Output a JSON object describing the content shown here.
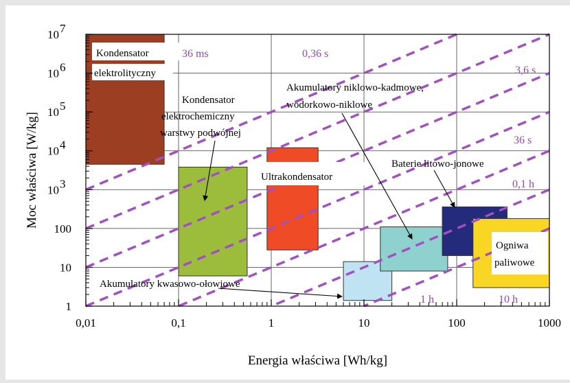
{
  "chart_data": {
    "type": "scatter",
    "subtype": "ragone-plot",
    "x_scale": "log",
    "y_scale": "log",
    "xlim": [
      0.01,
      1000
    ],
    "ylim": [
      1,
      10000000
    ],
    "xlabel": "Energia właściwa [Wh/kg]",
    "ylabel": "Moc właściwa [W/kg]",
    "x_ticks": [
      {
        "value": 0.01,
        "label": "0,01"
      },
      {
        "value": 0.1,
        "label": "0,1"
      },
      {
        "value": 1,
        "label": "1"
      },
      {
        "value": 10,
        "label": "10"
      },
      {
        "value": 100,
        "label": "100"
      },
      {
        "value": 1000,
        "label": "1000"
      }
    ],
    "y_ticks": [
      {
        "value": 1,
        "label": "1",
        "exp": ""
      },
      {
        "value": 10,
        "label": "10",
        "exp": ""
      },
      {
        "value": 100,
        "label": "100",
        "exp": ""
      },
      {
        "value": 1000,
        "label": "10",
        "exp": "3"
      },
      {
        "value": 10000,
        "label": "10",
        "exp": "4"
      },
      {
        "value": 100000,
        "label": "10",
        "exp": "5"
      },
      {
        "value": 1000000,
        "label": "10",
        "exp": "6"
      },
      {
        "value": 10000000,
        "label": "10",
        "exp": "7"
      }
    ],
    "grid": true,
    "regions": [
      {
        "name": "Kondensator elektrolityczny",
        "x": [
          0.01,
          0.07
        ],
        "y": [
          4500,
          10000000
        ],
        "color": "#9b3e22"
      },
      {
        "name": "Kondensator elektrochemiczny warstwy podwójnej",
        "x": [
          0.1,
          0.55
        ],
        "y": [
          6,
          3800
        ],
        "color": "#9cbd3c"
      },
      {
        "name": "Ultrakondensator",
        "x": [
          0.9,
          3.2
        ],
        "y": [
          28,
          12000
        ],
        "color": "#ee4b26"
      },
      {
        "name": "Akumulatory kwasowo-ołowiowe",
        "x": [
          6,
          20
        ],
        "y": [
          1.4,
          14
        ],
        "color": "#bfe3f3"
      },
      {
        "name": "Akumulatory niklowo-kadmowe, wodorkowo-niklowe",
        "x": [
          15,
          80
        ],
        "y": [
          8,
          110
        ],
        "color": "#8fd1cf"
      },
      {
        "name": "Baterie litowo-jonowe",
        "x": [
          70,
          350
        ],
        "y": [
          20,
          360
        ],
        "color": "#242a7c"
      },
      {
        "name": "Ogniwa paliwowe",
        "x": [
          150,
          1000
        ],
        "y": [
          3,
          180
        ],
        "color": "#f9d623"
      }
    ],
    "time_lines": [
      {
        "label": "36 ms",
        "hours": 1e-05
      },
      {
        "label": "0,36 s",
        "hours": 0.0001
      },
      {
        "label": "3,6 s",
        "hours": 0.001
      },
      {
        "label": "36 s",
        "hours": 0.01
      },
      {
        "label": "0,1 h",
        "hours": 0.1
      },
      {
        "label": "1 h",
        "hours": 1
      },
      {
        "label": "10 h",
        "hours": 10
      }
    ],
    "line_color": "#a050c0",
    "annotations": [
      {
        "text": "Kondensator",
        "target": ""
      },
      {
        "text": "elektrolityczny",
        "target": ""
      },
      {
        "text": "Kondensator",
        "target": ""
      },
      {
        "text": "elektrochemiczny",
        "target": ""
      },
      {
        "text": "warstwy podwójnej",
        "target": ""
      },
      {
        "text": "Ultrakondensator",
        "target": ""
      },
      {
        "text": "Akumulatory niklowo-kadmowe,",
        "target": ""
      },
      {
        "text": "wodorkowo-niklowe",
        "target": ""
      },
      {
        "text": "Baterie litowo-jonowe",
        "target": ""
      },
      {
        "text": "Akumulatory kwasowo-ołowiowe",
        "target": ""
      },
      {
        "text": "Ogniwa",
        "target": ""
      },
      {
        "text": "paliwowe",
        "target": ""
      }
    ]
  }
}
